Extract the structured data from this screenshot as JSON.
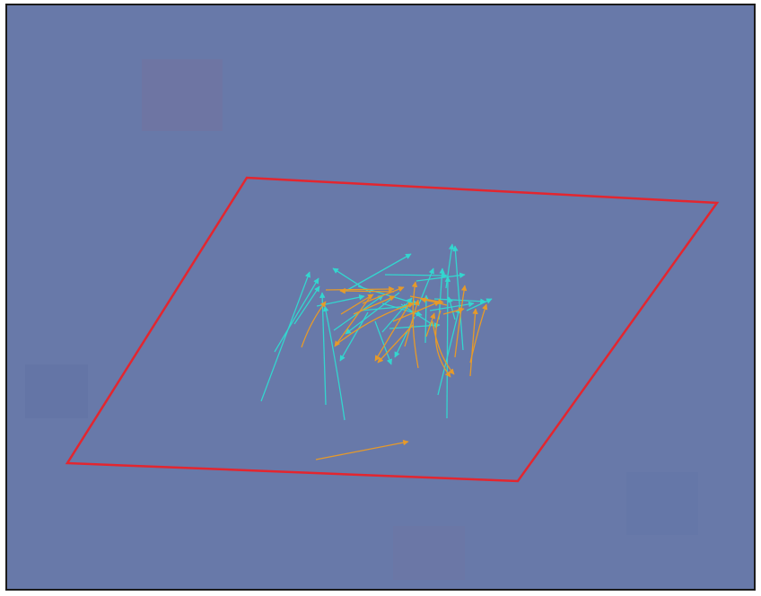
{
  "scene": {
    "background_color": "#6879a9",
    "plane_color": "#e3262f",
    "arrow_colors": {
      "cyan": "#33d6cf",
      "orange": "#e69a2a"
    },
    "arrow_counts": {
      "cyan": 32,
      "orange": 23
    }
  }
}
